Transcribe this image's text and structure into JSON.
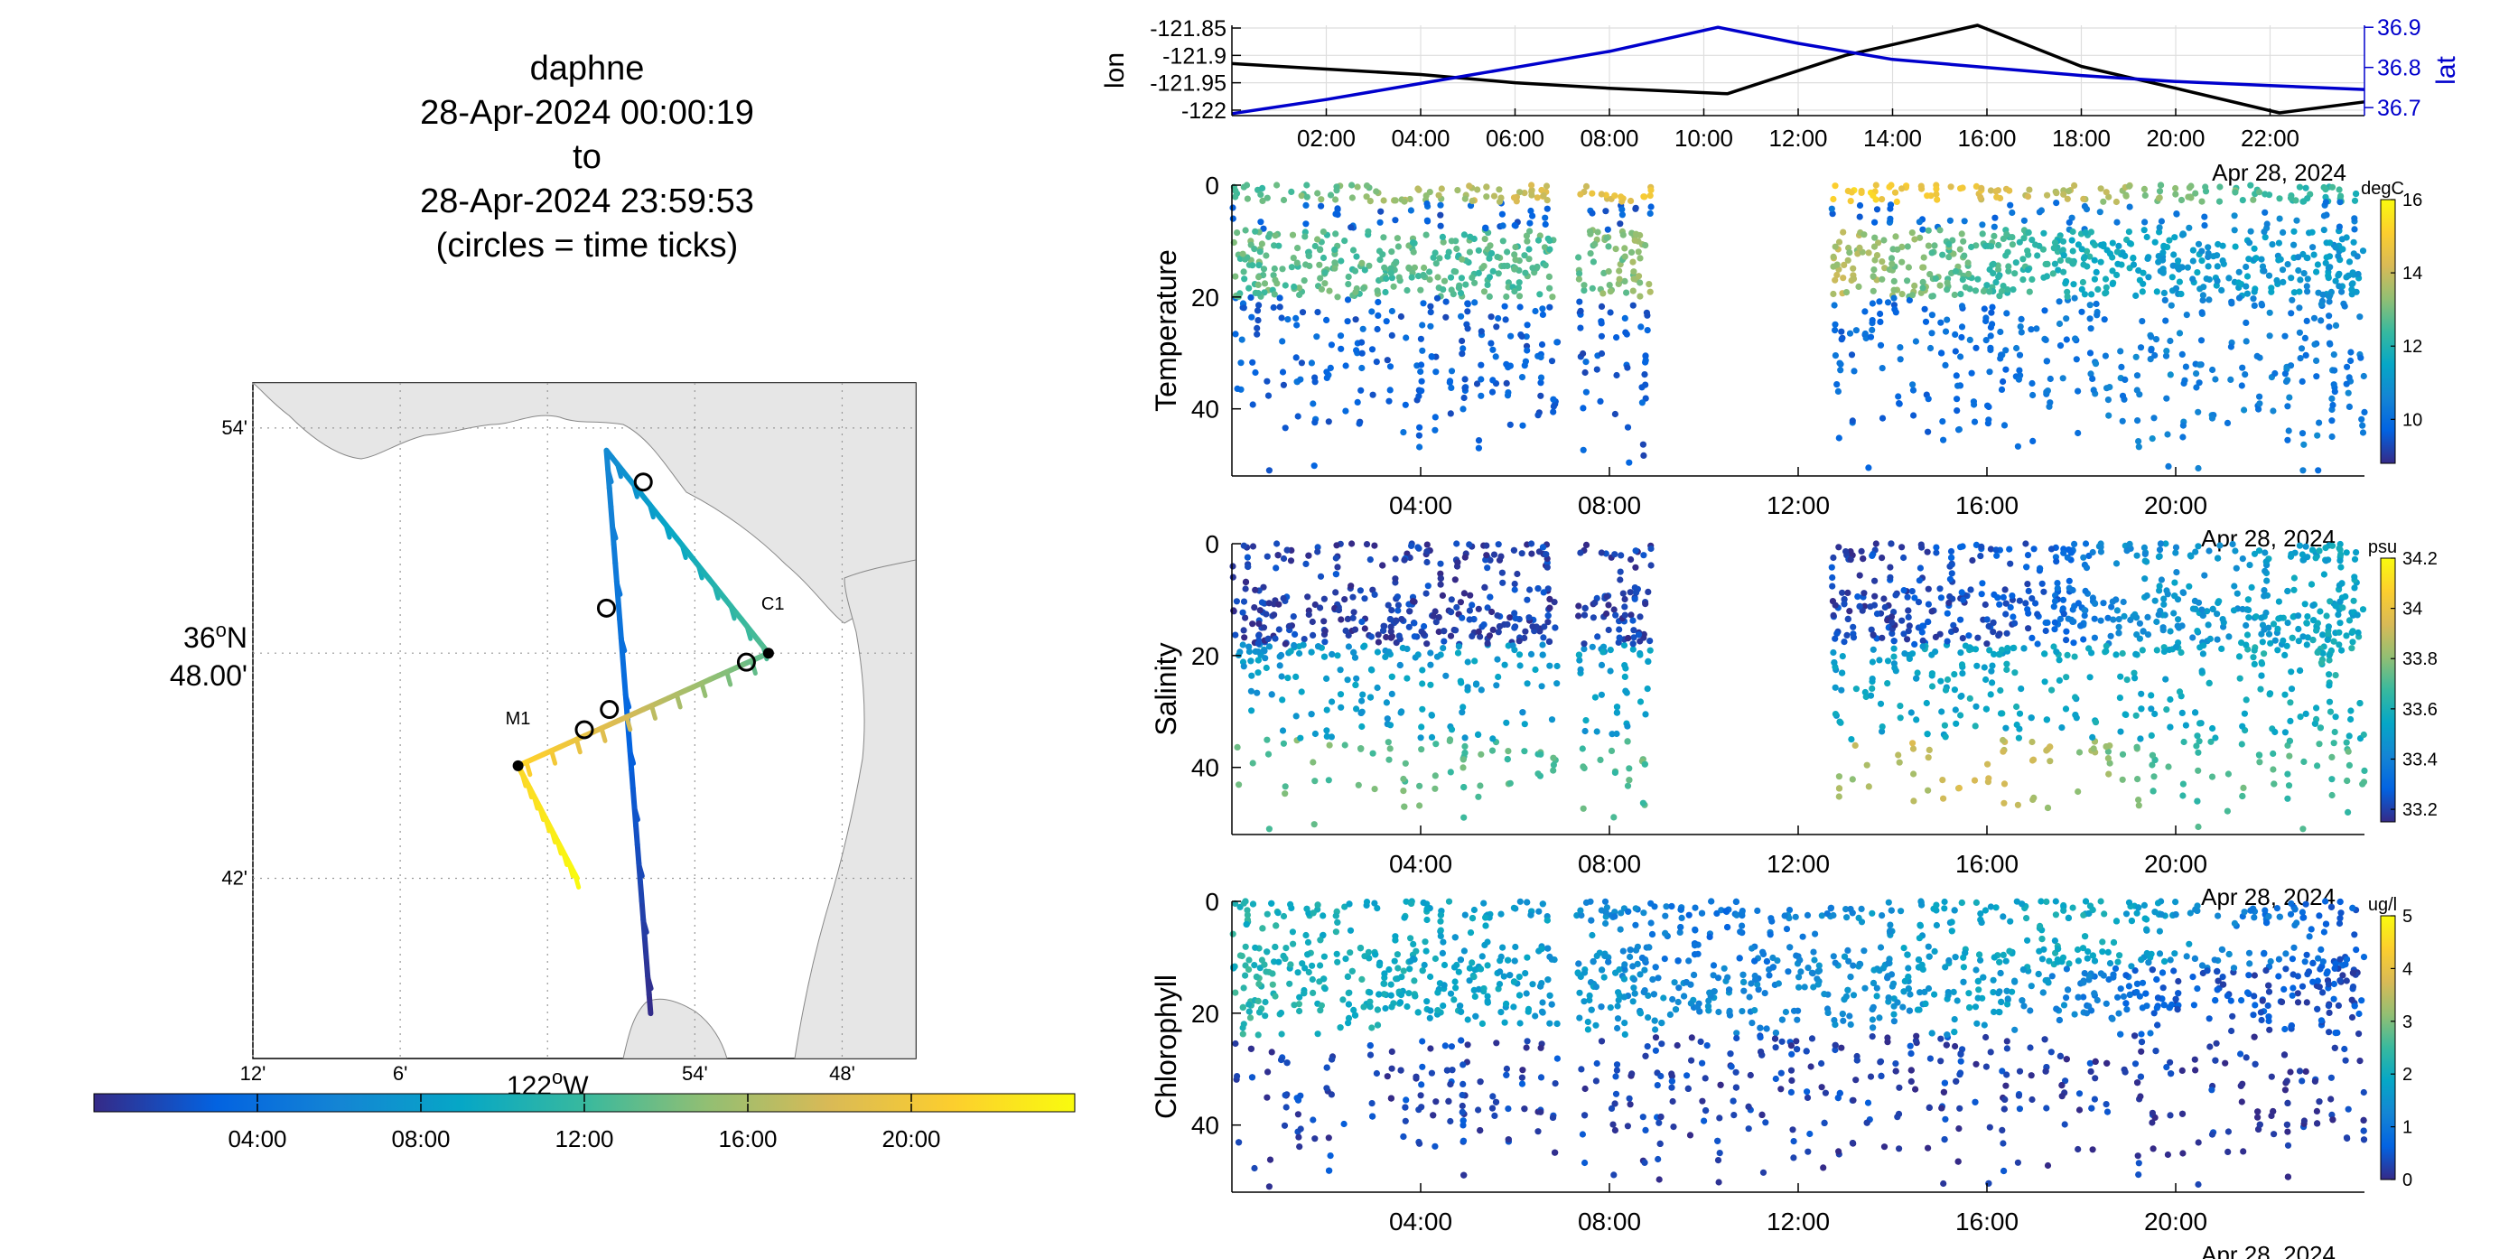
{
  "title": {
    "line1": "daphne",
    "line2": "28-Apr-2024 00:00:19",
    "line3": "to",
    "line4": "28-Apr-2024 23:59:53",
    "line5": "(circles = time ticks)"
  },
  "colors": {
    "black_track": "#000000",
    "blue_track": "#0000cc",
    "land": "#e6e6e6",
    "parula_stops": [
      "#352a87",
      "#0363e1",
      "#1485d4",
      "#06a7c6",
      "#38b99e",
      "#92bf73",
      "#d9ba56",
      "#fcce2e",
      "#f9fb0e"
    ]
  },
  "chart_data": [
    {
      "id": "map",
      "type": "line",
      "title": "",
      "lon_ticks": [
        "12'",
        "6'",
        "54'",
        "48'"
      ],
      "lon_tick_values": [
        -122.2,
        -122.1,
        -121.9,
        -121.8
      ],
      "lon_center_label": "122",
      "lon_center_suffix": "W",
      "lat_ticks": [
        "54'",
        "42'"
      ],
      "lat_tick_values": [
        36.9,
        36.7
      ],
      "lat_center_label_1": "36",
      "lat_center_label_1_suffix": "N",
      "lat_center_label_2": "48.00'",
      "xlim": [
        -122.2,
        -121.75
      ],
      "ylim": [
        36.62,
        36.92
      ],
      "stations": [
        {
          "name": "M1",
          "lon": -122.02,
          "lat": 36.75
        },
        {
          "name": "C1",
          "lon": -121.85,
          "lat": 36.8
        }
      ],
      "track_segments": [
        {
          "start_hour": 0.0,
          "end_hour": 6.3,
          "start": [
            -121.93,
            36.64
          ],
          "end": [
            -121.96,
            36.89
          ]
        },
        {
          "start_hour": 6.3,
          "end_hour": 13.0,
          "start": [
            -121.96,
            36.89
          ],
          "end": [
            -121.85,
            36.8
          ]
        },
        {
          "start_hour": 13.0,
          "end_hour": 21.5,
          "start": [
            -121.85,
            36.8
          ],
          "end": [
            -122.02,
            36.75
          ]
        },
        {
          "start_hour": 21.5,
          "end_hour": 24.0,
          "start": [
            -122.02,
            36.75
          ],
          "end": [
            -121.98,
            36.7
          ]
        }
      ],
      "time_tick_circles": [
        {
          "lon": -121.96,
          "lat": 36.82
        },
        {
          "lon": -121.935,
          "lat": 36.876
        },
        {
          "lon": -121.865,
          "lat": 36.796
        },
        {
          "lon": -121.958,
          "lat": 36.775
        },
        {
          "lon": -121.975,
          "lat": 36.766
        }
      ],
      "colorbar": {
        "ticks": [
          "04:00",
          "08:00",
          "12:00",
          "16:00",
          "20:00"
        ],
        "tick_hours": [
          4,
          8,
          12,
          16,
          20
        ],
        "range_hours": [
          0,
          24
        ]
      }
    },
    {
      "id": "lonlat",
      "type": "line",
      "x_unit": "hour",
      "xlim": [
        0,
        24
      ],
      "x_ticks": [
        "02:00",
        "04:00",
        "06:00",
        "08:00",
        "10:00",
        "12:00",
        "14:00",
        "16:00",
        "18:00",
        "20:00",
        "22:00"
      ],
      "x_tick_hours": [
        2,
        4,
        6,
        8,
        10,
        12,
        14,
        16,
        18,
        20,
        22
      ],
      "date_label": "Apr 28, 2024",
      "left_axis": {
        "label": "lon",
        "ticks": [
          "-121.85",
          "-121.9",
          "-121.95",
          "-122"
        ],
        "tick_values": [
          -121.85,
          -121.9,
          -121.95,
          -122.0
        ],
        "ylim": [
          -122.01,
          -121.845
        ]
      },
      "right_axis": {
        "label": "lat",
        "ticks": [
          "36.9",
          "36.8",
          "36.7"
        ],
        "tick_values": [
          36.9,
          36.8,
          36.7
        ],
        "ylim": [
          36.68,
          36.905
        ]
      },
      "series": [
        {
          "name": "lon",
          "axis": "left",
          "color": "#000000",
          "x": [
            0,
            2,
            4,
            6,
            8,
            10.5,
            13,
            15.8,
            18,
            20,
            22.2,
            24
          ],
          "y": [
            -121.915,
            -121.925,
            -121.935,
            -121.95,
            -121.96,
            -121.97,
            -121.9,
            -121.845,
            -121.92,
            -121.96,
            -122.005,
            -121.985
          ]
        },
        {
          "name": "lat",
          "axis": "right",
          "color": "#0000cc",
          "x": [
            0,
            2,
            4,
            6,
            8,
            10.3,
            12,
            14,
            16,
            18,
            20,
            22,
            24
          ],
          "y": [
            36.685,
            36.72,
            36.76,
            36.8,
            36.84,
            36.9,
            36.86,
            36.82,
            36.8,
            36.78,
            36.765,
            36.755,
            36.745
          ]
        }
      ]
    },
    {
      "id": "temperature",
      "type": "scatter",
      "ylabel": "Temperature",
      "x_unit": "hour",
      "xlim": [
        0,
        24
      ],
      "ylim": [
        0,
        52
      ],
      "y_reversed": true,
      "y_ticks": [
        "0",
        "20",
        "40"
      ],
      "y_tick_values": [
        0,
        20,
        40
      ],
      "x_ticks": [
        "04:00",
        "08:00",
        "12:00",
        "16:00",
        "20:00"
      ],
      "x_tick_hours": [
        4,
        8,
        12,
        16,
        20
      ],
      "date_label": "Apr 28, 2024",
      "colorbar": {
        "unit": "degC",
        "ticks": [
          "16",
          "14",
          "12",
          "10"
        ],
        "tick_values": [
          16,
          14,
          12,
          10
        ],
        "range": [
          8.8,
          16
        ]
      },
      "gaps": [
        [
          6.9,
          7.3
        ],
        [
          8.9,
          12.7
        ]
      ],
      "layers": [
        {
          "hours": [
            0,
            24
          ],
          "depth": [
            0,
            3
          ],
          "value_by_time": [
            [
              0,
              12.5
            ],
            [
              8,
              14.5
            ],
            [
              13,
              15.2
            ],
            [
              17,
              14
            ],
            [
              24,
              12
            ]
          ]
        },
        {
          "hours": [
            0,
            24
          ],
          "depth": [
            8,
            20
          ],
          "value_by_time": [
            [
              0,
              12.8
            ],
            [
              6,
              12.6
            ],
            [
              12,
              14
            ],
            [
              16,
              12.5
            ],
            [
              20,
              11.2
            ],
            [
              24,
              11
            ]
          ]
        },
        {
          "hours": [
            0,
            24
          ],
          "depth": [
            20,
            52
          ],
          "value_by_time": [
            [
              0,
              9.8
            ],
            [
              8,
              9.6
            ],
            [
              12,
              9.8
            ],
            [
              16,
              10
            ],
            [
              20,
              10.5
            ],
            [
              24,
              10.3
            ]
          ]
        }
      ]
    },
    {
      "id": "salinity",
      "type": "scatter",
      "ylabel": "Salinity",
      "x_unit": "hour",
      "xlim": [
        0,
        24
      ],
      "ylim": [
        0,
        52
      ],
      "y_reversed": true,
      "y_ticks": [
        "0",
        "20",
        "40"
      ],
      "y_tick_values": [
        0,
        20,
        40
      ],
      "x_ticks": [
        "04:00",
        "08:00",
        "12:00",
        "16:00",
        "20:00"
      ],
      "x_tick_hours": [
        4,
        8,
        12,
        16,
        20
      ],
      "date_label": "Apr 28, 2024",
      "colorbar": {
        "unit": "psu",
        "ticks": [
          "34.2",
          "34",
          "33.8",
          "33.6",
          "33.4",
          "33.2"
        ],
        "tick_values": [
          34.2,
          34.0,
          33.8,
          33.6,
          33.4,
          33.2
        ],
        "range": [
          33.15,
          34.2
        ]
      },
      "gaps": [
        [
          6.9,
          7.3
        ],
        [
          8.9,
          12.7
        ]
      ],
      "layers": [
        {
          "hours": [
            0,
            24
          ],
          "depth": [
            0,
            18
          ],
          "value_by_time": [
            [
              0,
              33.2
            ],
            [
              12,
              33.2
            ],
            [
              17,
              33.25
            ],
            [
              19,
              33.45
            ],
            [
              24,
              33.55
            ]
          ]
        },
        {
          "hours": [
            0,
            24
          ],
          "depth": [
            18,
            35
          ],
          "value_by_time": [
            [
              0,
              33.5
            ],
            [
              12,
              33.5
            ],
            [
              16,
              33.55
            ],
            [
              20,
              33.55
            ],
            [
              24,
              33.6
            ]
          ]
        },
        {
          "hours": [
            0,
            24
          ],
          "depth": [
            35,
            52
          ],
          "value_by_time": [
            [
              0,
              33.75
            ],
            [
              8,
              33.7
            ],
            [
              13,
              33.85
            ],
            [
              16,
              33.95
            ],
            [
              20,
              33.7
            ],
            [
              24,
              33.7
            ]
          ]
        }
      ]
    },
    {
      "id": "chlorophyll",
      "type": "scatter",
      "ylabel": "Chlorophyll",
      "x_unit": "hour",
      "xlim": [
        0,
        24
      ],
      "ylim": [
        0,
        52
      ],
      "y_reversed": true,
      "y_ticks": [
        "0",
        "20",
        "40"
      ],
      "y_tick_values": [
        0,
        20,
        40
      ],
      "x_ticks": [
        "04:00",
        "08:00",
        "12:00",
        "16:00",
        "20:00"
      ],
      "x_tick_hours": [
        4,
        8,
        12,
        16,
        20
      ],
      "date_label": "Apr 28, 2024",
      "colorbar": {
        "unit": "ug/l",
        "ticks": [
          "5",
          "4",
          "3",
          "2",
          "1",
          "0"
        ],
        "tick_values": [
          5,
          4,
          3,
          2,
          1,
          0
        ],
        "range": [
          0,
          5
        ]
      },
      "gaps": [
        [
          6.9,
          7.3
        ]
      ],
      "layers": [
        {
          "hours": [
            0,
            24
          ],
          "depth": [
            0,
            12
          ],
          "value_by_time": [
            [
              0,
              2.2
            ],
            [
              7,
              1.6
            ],
            [
              10,
              0.8
            ],
            [
              14,
              1.6
            ],
            [
              18,
              2
            ],
            [
              24,
              0.5
            ]
          ]
        },
        {
          "hours": [
            0,
            24
          ],
          "depth": [
            12,
            24
          ],
          "value_by_time": [
            [
              0,
              2.4
            ],
            [
              8,
              1.5
            ],
            [
              12,
              1.2
            ],
            [
              16,
              1.8
            ],
            [
              20,
              0.5
            ],
            [
              24,
              0.4
            ]
          ]
        },
        {
          "hours": [
            0,
            24
          ],
          "depth": [
            24,
            52
          ],
          "value_by_time": [
            [
              0,
              0.3
            ],
            [
              12,
              0.3
            ],
            [
              24,
              0.2
            ]
          ]
        }
      ]
    }
  ]
}
